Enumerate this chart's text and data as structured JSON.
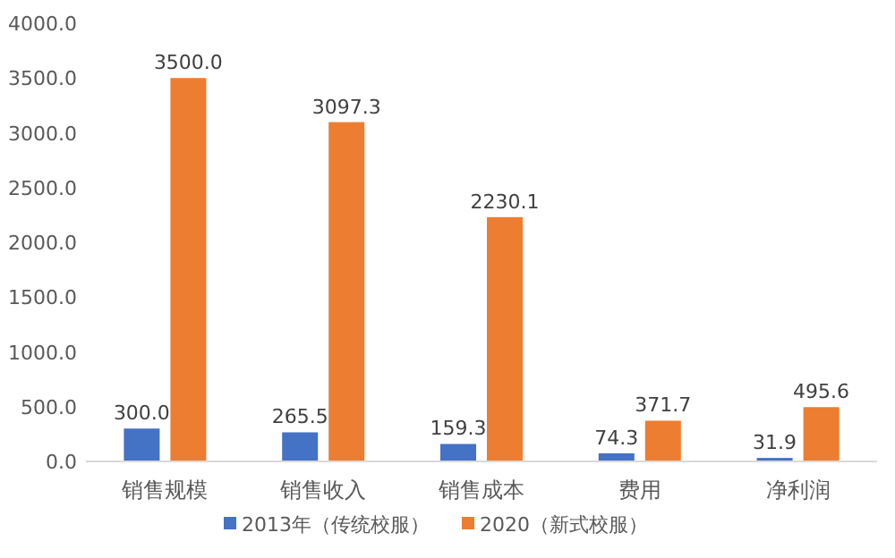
{
  "chart_data": {
    "type": "bar",
    "categories": [
      "销售规模",
      "销售收入",
      "销售成本",
      "费用",
      "净利润"
    ],
    "series": [
      {
        "name": "2013年（传统校服）",
        "color": "#4472c4",
        "values": [
          300.0,
          265.5,
          159.3,
          74.3,
          31.9
        ],
        "value_labels": [
          "300.0",
          "265.5",
          "159.3",
          "74.3",
          "31.9"
        ]
      },
      {
        "name": "2020（新式校服）",
        "color": "#ed7d31",
        "values": [
          3500.0,
          3097.3,
          2230.1,
          371.7,
          495.6
        ],
        "value_labels": [
          "3500.0",
          "3097.3",
          "2230.1",
          "371.7",
          "495.6"
        ]
      }
    ],
    "ylim": [
      0,
      4000
    ],
    "yticks": [
      {
        "value": 0,
        "label": "0.0"
      },
      {
        "value": 500,
        "label": "500.0"
      },
      {
        "value": 1000,
        "label": "1000.0"
      },
      {
        "value": 1500,
        "label": "1500.0"
      },
      {
        "value": 2000,
        "label": "2000.0"
      },
      {
        "value": 2500,
        "label": "2500.0"
      },
      {
        "value": 3000,
        "label": "3000.0"
      },
      {
        "value": 3500,
        "label": "3500.0"
      },
      {
        "value": 4000,
        "label": "4000.0"
      }
    ],
    "legend": "bottom"
  }
}
